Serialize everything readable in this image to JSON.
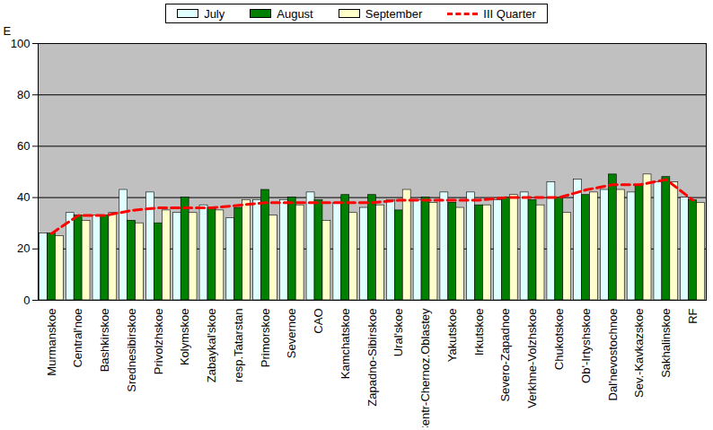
{
  "chart_data": {
    "type": "bar",
    "y_label": "E",
    "categories": [
      "Murmanskoe",
      "Central'noe",
      "Bashkirskoe",
      "Srednesibirskoe",
      "Privolzhskoe",
      "Kolymskoe",
      "Zabaykal'skoe",
      "resp.Tatarstan",
      "Primorskoe",
      "Severnoe",
      "CAO",
      "Kamchatskoe",
      "Zapadno-Sibirskoe",
      "Ural'skoe",
      "Centr-Chernoz.Oblastey",
      "Yakutskoe",
      "Irkutskoe",
      "Severo-Zapadnoe",
      "Verkhne-Volzhskoe",
      "Chukotskoe",
      "Ob'-Irtyshskoe",
      "Dal'nevostochnoe",
      "Sev.-Kavkazskoe",
      "Sakhalinskoe",
      "RF"
    ],
    "series": [
      {
        "name": "July",
        "type": "bar",
        "color": "#e0ffff",
        "values": [
          26,
          34,
          33,
          43,
          42,
          34,
          37,
          32,
          39,
          39,
          42,
          38,
          36,
          39,
          39,
          42,
          42,
          39,
          42,
          46,
          47,
          43,
          42,
          46,
          40
        ]
      },
      {
        "name": "August",
        "type": "bar",
        "color": "#008000",
        "values": [
          26,
          33,
          33,
          31,
          30,
          40,
          36,
          36,
          43,
          40,
          39,
          41,
          41,
          35,
          40,
          38,
          37,
          40,
          39,
          40,
          41,
          49,
          45,
          48,
          39
        ]
      },
      {
        "name": "September",
        "type": "bar",
        "color": "#ffffcc",
        "values": [
          25,
          31,
          34,
          30,
          35,
          34,
          35,
          39,
          33,
          37,
          31,
          34,
          37,
          43,
          38,
          36,
          37,
          41,
          37,
          34,
          42,
          43,
          49,
          46,
          38
        ]
      },
      {
        "name": "III Quarter",
        "type": "line",
        "line_style": "dashed",
        "color": "#ff0000",
        "values": [
          26,
          33,
          33,
          35,
          36,
          36,
          36,
          37,
          38,
          38,
          38,
          38,
          38,
          39,
          39,
          39,
          39,
          40,
          40,
          40,
          43,
          45,
          45,
          47,
          39
        ]
      }
    ],
    "ylim": [
      0,
      100
    ],
    "yticks": [
      0,
      20,
      40,
      60,
      80,
      100
    ],
    "grid": true,
    "legend": "top"
  }
}
